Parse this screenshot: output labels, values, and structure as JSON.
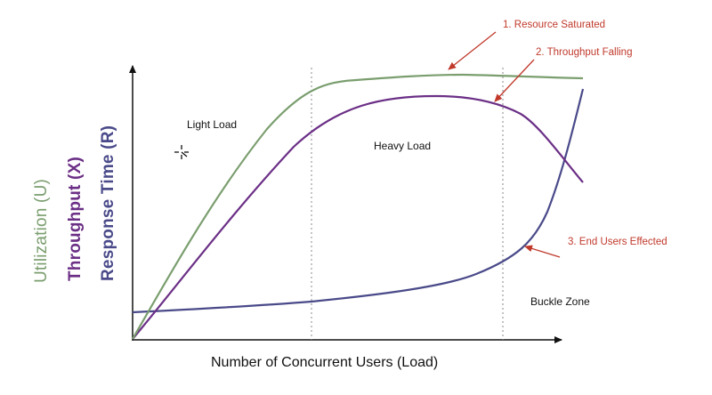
{
  "axes": {
    "x_label": "Number of  Concurrent Users (Load)",
    "y_labels": {
      "utilization": "Utilization (U)",
      "throughput": "Throughput (X)",
      "response_time": "Response Time (R)"
    }
  },
  "regions": {
    "light": "Light Load",
    "heavy": "Heavy Load",
    "buckle": "Buckle Zone"
  },
  "annotations": {
    "resource_saturated": "1. Resource Saturated",
    "throughput_falling": "2. Throughput Falling",
    "end_users_effected": "3. End Users Effected"
  },
  "colors": {
    "utilization": "#7a9e6e",
    "throughput": "#6b2f86",
    "response_time": "#4a4a8a",
    "annotation": "#c0392b"
  }
}
